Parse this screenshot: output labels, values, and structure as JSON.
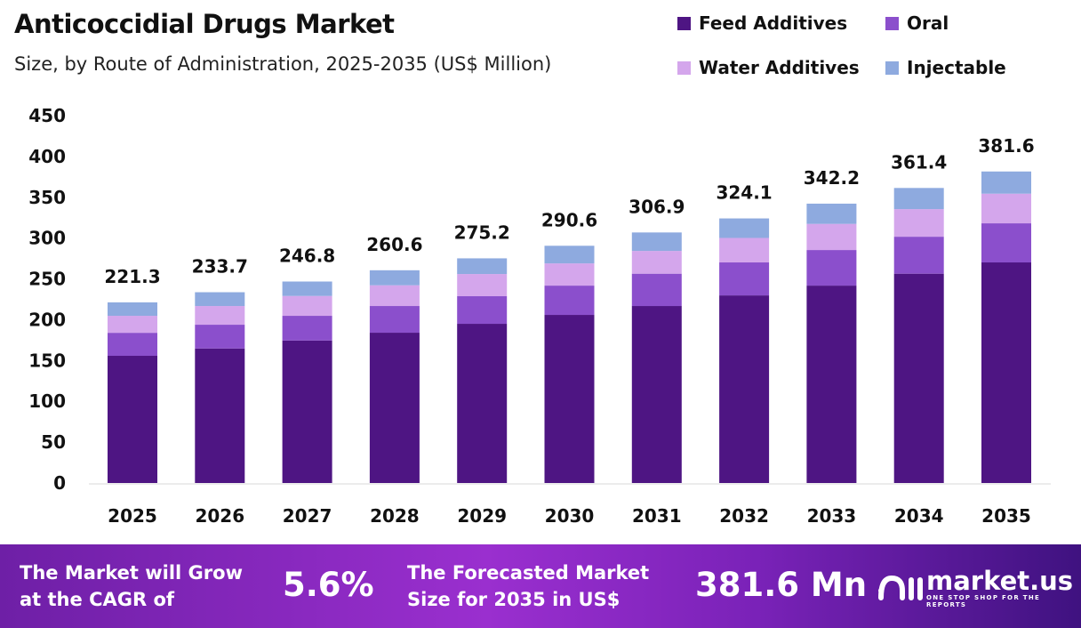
{
  "header": {
    "title": "Anticoccidial Drugs Market",
    "subtitle": "Size, by Route of Administration, 2025-2035 (US$ Million)"
  },
  "chart_data": {
    "type": "bar",
    "stacked": true,
    "categories": [
      "2025",
      "2026",
      "2027",
      "2028",
      "2029",
      "2030",
      "2031",
      "2032",
      "2033",
      "2034",
      "2035"
    ],
    "series": [
      {
        "name": "Feed Additives",
        "color": "#4e1583",
        "values": [
          155.8,
          164.8,
          174.6,
          184.1,
          195.0,
          205.9,
          216.8,
          229.8,
          241.8,
          256.4,
          270.2
        ]
      },
      {
        "name": "Oral",
        "color": "#8b4fcc",
        "values": [
          28.2,
          29.1,
          30.2,
          32.7,
          33.8,
          35.9,
          39.6,
          40.4,
          43.6,
          45.3,
          47.9
        ]
      },
      {
        "name": "Water Additives",
        "color": "#d4a6ec",
        "values": [
          20.8,
          22.9,
          24.3,
          25.4,
          27.2,
          27.2,
          27.9,
          30.0,
          32.0,
          33.8,
          36.3
        ]
      },
      {
        "name": "Injectable",
        "color": "#8eaadf",
        "values": [
          16.5,
          16.9,
          17.7,
          18.4,
          19.2,
          21.6,
          22.6,
          23.9,
          24.8,
          25.9,
          27.2
        ]
      }
    ],
    "totals": [
      "221.3",
      "233.7",
      "246.8",
      "260.6",
      "275.2",
      "290.6",
      "306.9",
      "324.1",
      "342.2",
      "361.4",
      "381.6"
    ],
    "yticks": [
      "0",
      "50",
      "100",
      "150",
      "200",
      "250",
      "300",
      "350",
      "400",
      "450"
    ],
    "ylim": [
      0,
      450
    ],
    "grid": false,
    "legend_position": "top-right"
  },
  "banner": {
    "cagr_text_1": "The Market will Grow",
    "cagr_text_2": "at the CAGR of",
    "cagr_value": "5.6%",
    "forecast_text_1": "The Forecasted Market",
    "forecast_text_2": "Size for 2035 in US$",
    "forecast_value": "381.6 Mn",
    "logo_name": "market.us",
    "logo_tagline": "ONE STOP SHOP FOR THE REPORTS"
  }
}
